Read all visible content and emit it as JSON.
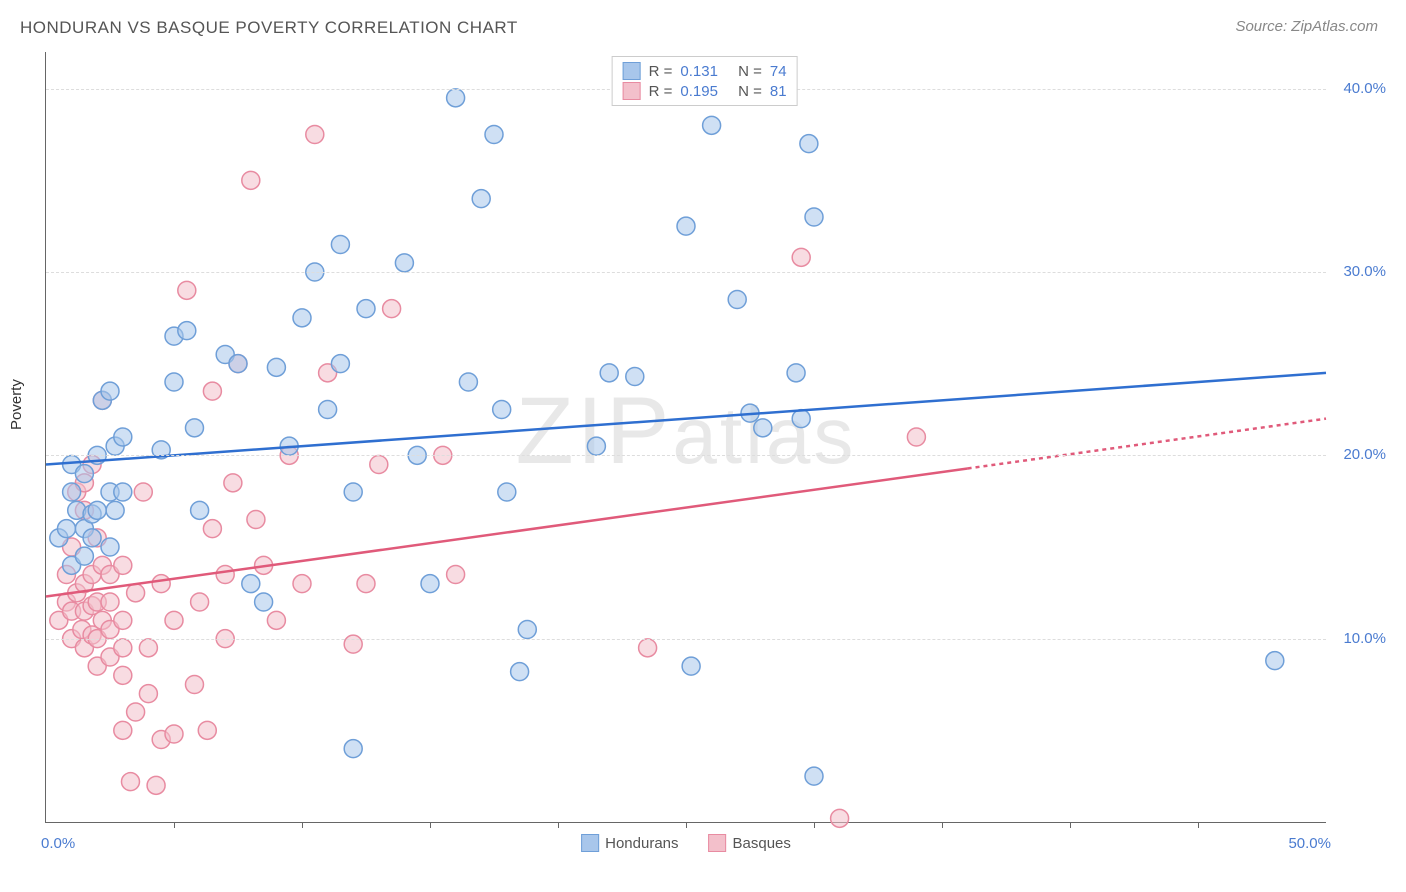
{
  "title": "HONDURAN VS BASQUE POVERTY CORRELATION CHART",
  "source_label": "Source: ZipAtlas.com",
  "ylabel": "Poverty",
  "watermark": "ZIPatlas",
  "chart": {
    "type": "scatter",
    "background_color": "#ffffff",
    "grid_color": "#dddddd",
    "axis_color": "#666666",
    "label_fontsize": 15,
    "tick_color": "#4a7bd0",
    "xlim": [
      0,
      50
    ],
    "ylim": [
      0,
      42
    ],
    "x_ticks": [
      5,
      10,
      15,
      20,
      25,
      30,
      35,
      40,
      45
    ],
    "x_tick_labels": {
      "0": "0.0%",
      "50": "50.0%"
    },
    "y_gridlines": [
      10,
      20,
      30,
      40
    ],
    "y_tick_labels": {
      "10": "10.0%",
      "20": "20.0%",
      "30": "30.0%",
      "40": "40.0%"
    },
    "marker_radius": 9,
    "marker_opacity": 0.55,
    "marker_stroke_width": 1.5,
    "trend_line_width": 2.5,
    "series": {
      "hondurans": {
        "label": "Hondurans",
        "fill_color": "#a8c6eb",
        "stroke_color": "#6f9fd8",
        "line_color": "#2f6fd0",
        "R": "0.131",
        "N": "74",
        "trend": {
          "x1": 0,
          "y1": 19.5,
          "x2": 50,
          "y2": 24.5
        },
        "trend_solid_until_x": 50,
        "points": [
          [
            0.5,
            15.5
          ],
          [
            0.8,
            16
          ],
          [
            1,
            14
          ],
          [
            1,
            18
          ],
          [
            1,
            19.5
          ],
          [
            1.2,
            17
          ],
          [
            1.5,
            14.5
          ],
          [
            1.5,
            16
          ],
          [
            1.5,
            19
          ],
          [
            1.8,
            15.5
          ],
          [
            1.8,
            16.8
          ],
          [
            2,
            17
          ],
          [
            2,
            20
          ],
          [
            2.2,
            23
          ],
          [
            2.5,
            18
          ],
          [
            2.5,
            23.5
          ],
          [
            2.5,
            15
          ],
          [
            2.7,
            20.5
          ],
          [
            2.7,
            17
          ],
          [
            3,
            21
          ],
          [
            3,
            18
          ],
          [
            4.5,
            20.3
          ],
          [
            5,
            24
          ],
          [
            5,
            26.5
          ],
          [
            5.5,
            26.8
          ],
          [
            5.8,
            21.5
          ],
          [
            6,
            17
          ],
          [
            7,
            25.5
          ],
          [
            7.5,
            25
          ],
          [
            8,
            13
          ],
          [
            8.5,
            12
          ],
          [
            9,
            24.8
          ],
          [
            9.5,
            20.5
          ],
          [
            10,
            27.5
          ],
          [
            10.5,
            30
          ],
          [
            11,
            22.5
          ],
          [
            11.5,
            25
          ],
          [
            11.5,
            31.5
          ],
          [
            12,
            4
          ],
          [
            12,
            18
          ],
          [
            12.5,
            28
          ],
          [
            14,
            30.5
          ],
          [
            14.5,
            20
          ],
          [
            15,
            13
          ],
          [
            16,
            39.5
          ],
          [
            16.5,
            24
          ],
          [
            17,
            34
          ],
          [
            17.5,
            37.5
          ],
          [
            17.8,
            22.5
          ],
          [
            18,
            18
          ],
          [
            18.5,
            8.2
          ],
          [
            18.8,
            10.5
          ],
          [
            21.5,
            20.5
          ],
          [
            22,
            24.5
          ],
          [
            23,
            24.3
          ],
          [
            25,
            32.5
          ],
          [
            25.2,
            8.5
          ],
          [
            26,
            38
          ],
          [
            27,
            28.5
          ],
          [
            27.5,
            22.3
          ],
          [
            28,
            21.5
          ],
          [
            29.3,
            24.5
          ],
          [
            29.5,
            22
          ],
          [
            29.8,
            37
          ],
          [
            30,
            2.5
          ],
          [
            30,
            33
          ],
          [
            48,
            8.8
          ]
        ]
      },
      "basques": {
        "label": "Basques",
        "fill_color": "#f3c0cb",
        "stroke_color": "#e88ba1",
        "line_color": "#e05a7a",
        "R": "0.195",
        "N": "81",
        "trend": {
          "x1": 0,
          "y1": 12.3,
          "x2": 50,
          "y2": 22
        },
        "trend_solid_until_x": 36,
        "points": [
          [
            0.5,
            11
          ],
          [
            0.8,
            12
          ],
          [
            0.8,
            13.5
          ],
          [
            1,
            10
          ],
          [
            1,
            11.5
          ],
          [
            1,
            15
          ],
          [
            1.2,
            18
          ],
          [
            1.2,
            12.5
          ],
          [
            1.4,
            10.5
          ],
          [
            1.5,
            9.5
          ],
          [
            1.5,
            11.5
          ],
          [
            1.5,
            13
          ],
          [
            1.5,
            17
          ],
          [
            1.5,
            18.5
          ],
          [
            1.8,
            10.2
          ],
          [
            1.8,
            11.8
          ],
          [
            1.8,
            13.5
          ],
          [
            1.8,
            19.5
          ],
          [
            2,
            8.5
          ],
          [
            2,
            10
          ],
          [
            2,
            12
          ],
          [
            2,
            15.5
          ],
          [
            2.2,
            11
          ],
          [
            2.2,
            14
          ],
          [
            2.2,
            23
          ],
          [
            2.5,
            9
          ],
          [
            2.5,
            10.5
          ],
          [
            2.5,
            12
          ],
          [
            2.5,
            13.5
          ],
          [
            3,
            5
          ],
          [
            3,
            8
          ],
          [
            3,
            9.5
          ],
          [
            3,
            11
          ],
          [
            3,
            14
          ],
          [
            3.3,
            2.2
          ],
          [
            3.5,
            6
          ],
          [
            3.5,
            12.5
          ],
          [
            3.8,
            18
          ],
          [
            4,
            7
          ],
          [
            4,
            9.5
          ],
          [
            4.3,
            2
          ],
          [
            4.5,
            4.5
          ],
          [
            4.5,
            13
          ],
          [
            5,
            4.8
          ],
          [
            5,
            11
          ],
          [
            5.5,
            29
          ],
          [
            5.8,
            7.5
          ],
          [
            6,
            12
          ],
          [
            6.3,
            5
          ],
          [
            6.5,
            16
          ],
          [
            6.5,
            23.5
          ],
          [
            7,
            10
          ],
          [
            7,
            13.5
          ],
          [
            7.3,
            18.5
          ],
          [
            7.5,
            25
          ],
          [
            8,
            35
          ],
          [
            8.2,
            16.5
          ],
          [
            8.5,
            14
          ],
          [
            9,
            11
          ],
          [
            9.5,
            20
          ],
          [
            10,
            13
          ],
          [
            10.5,
            37.5
          ],
          [
            11,
            24.5
          ],
          [
            12,
            9.7
          ],
          [
            12.5,
            13
          ],
          [
            13,
            19.5
          ],
          [
            13.5,
            28
          ],
          [
            15.5,
            20
          ],
          [
            16,
            13.5
          ],
          [
            23.5,
            9.5
          ],
          [
            29.5,
            30.8
          ],
          [
            31,
            0.2
          ],
          [
            34,
            21
          ]
        ]
      }
    },
    "legend_bottom": [
      {
        "key": "hondurans",
        "label": "Hondurans"
      },
      {
        "key": "basques",
        "label": "Basques"
      }
    ],
    "stats_box_labels": {
      "R": "R  =",
      "N": "N  ="
    }
  }
}
